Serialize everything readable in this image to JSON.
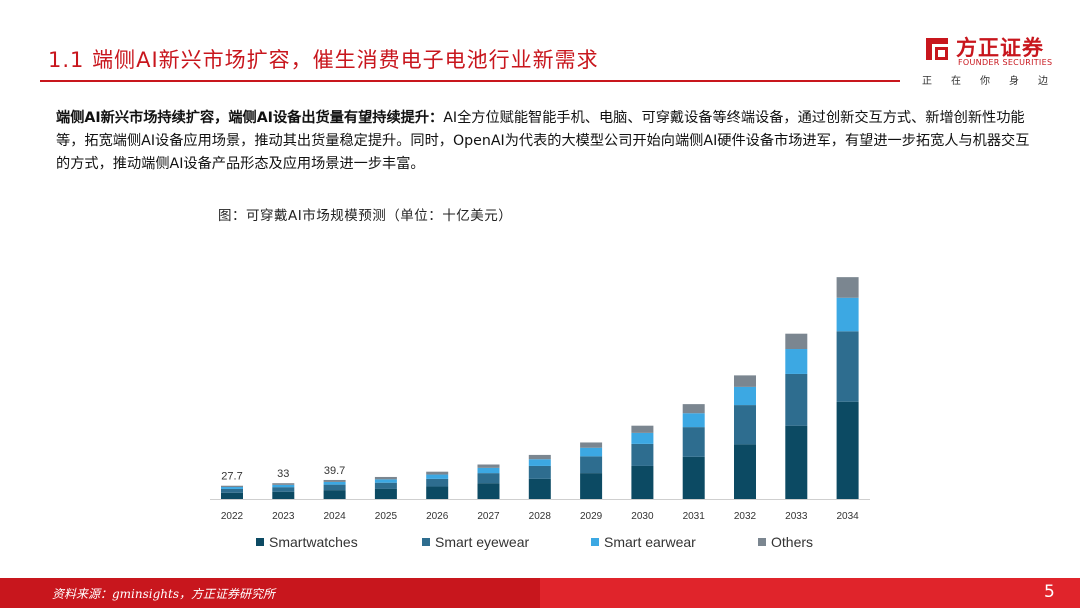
{
  "header": {
    "title": "1.1 端侧AI新兴市场扩容，催生消费电子电池行业新需求"
  },
  "logo": {
    "name": "方正证券",
    "english": "FOUNDER SECURITIES",
    "slogan": [
      "正",
      "在",
      "你",
      "身",
      "边"
    ],
    "brand_color": "#c8161d"
  },
  "body": {
    "bold_lead": "端侧AI新兴市场持续扩容，端侧AI设备出货量有望持续提升：",
    "text": "AI全方位赋能智能手机、电脑、可穿戴设备等终端设备，通过创新交互方式、新增创新性功能等，拓宽端侧AI设备应用场景，推动其出货量稳定提升。同时，OpenAI为代表的大模型公司开始向端侧AI硬件设备市场进军，有望进一步拓宽人与机器交互的方式，推动端侧AI设备产品形态及应用场景进一步丰富。"
  },
  "figure": {
    "caption": "图：可穿戴AI市场规模预测（单位：十亿美元）"
  },
  "chart_data": {
    "type": "bar",
    "stacked": true,
    "categories": [
      "2022",
      "2023",
      "2024",
      "2025",
      "2026",
      "2027",
      "2028",
      "2029",
      "2030",
      "2031",
      "2032",
      "2033",
      "2034"
    ],
    "series": [
      {
        "name": "Smartwatches",
        "color": "#0c4a63",
        "values": [
          13.0,
          15.2,
          18.5,
          21,
          26,
          33,
          42,
          54,
          69,
          88,
          114,
          153,
          203
        ]
      },
      {
        "name": "Smart eyewear",
        "color": "#2e6d8f",
        "values": [
          8.0,
          9.5,
          11.5,
          13,
          16,
          21,
          27,
          35,
          46,
          62,
          82,
          108,
          147
        ]
      },
      {
        "name": "Smart earwear",
        "color": "#3ca8e3",
        "values": [
          4.0,
          4.8,
          5.6,
          7,
          9,
          11,
          14,
          18,
          23,
          29,
          38,
          52,
          70
        ]
      },
      {
        "name": "Others",
        "color": "#7b8690",
        "values": [
          2.7,
          3.5,
          4.1,
          5,
          6,
          7,
          9,
          11,
          15,
          19,
          24,
          32,
          43
        ]
      }
    ],
    "total_labels": [
      "27.7",
      "33",
      "39.7"
    ],
    "ylim": [
      0,
      480
    ],
    "legend_position": "bottom"
  },
  "footer": {
    "source": "资料来源：gminsights，方正证券研究所",
    "page_number": "5"
  }
}
